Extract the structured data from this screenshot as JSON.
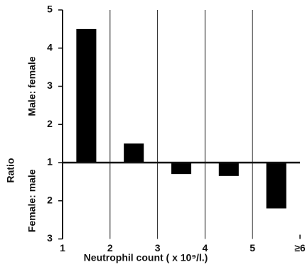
{
  "chart_data": {
    "type": "bar",
    "y_label": "Ratio",
    "x_label": "Neutrophil count ( x 10⁹/l.)",
    "x": [
      1.5,
      2.5,
      3.5,
      4.5,
      5.5
    ],
    "xlim": [
      1,
      6
    ],
    "xticks": [
      1,
      2,
      3,
      4,
      5,
      {
        "value": 6,
        "label": "≥6"
      }
    ],
    "ylim": [
      1,
      5
    ],
    "yticks": [
      1,
      2,
      3,
      4,
      5
    ],
    "y2lim": [
      1,
      3
    ],
    "y2ticks": [
      2,
      3
    ],
    "y2_direction": "down",
    "grid": true,
    "series": [
      {
        "name": "Male: female",
        "color": "#000000",
        "values": [
          4.5,
          1.5,
          null,
          null,
          null
        ]
      },
      {
        "name": "Female: male",
        "color": "#000000",
        "values": [
          null,
          null,
          1.3,
          1.35,
          2.2
        ],
        "axis": "y2"
      }
    ]
  }
}
